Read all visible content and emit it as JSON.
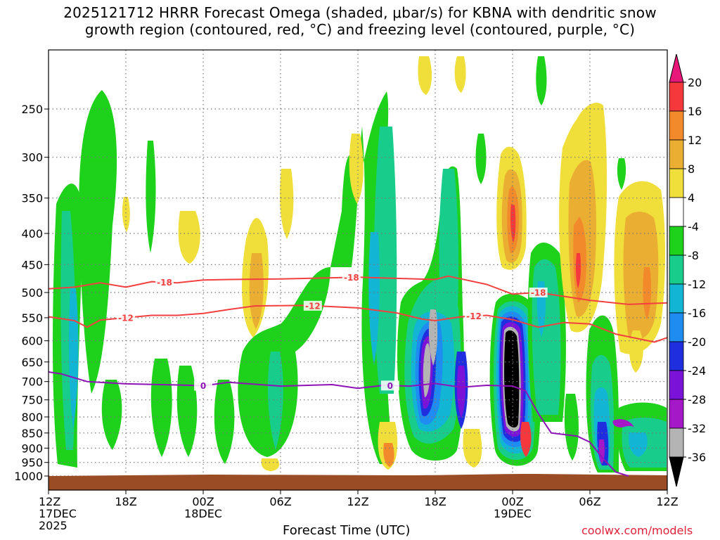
{
  "title": {
    "line1": "2025121712 HRRR Forecast Omega (shaded, μbar/s) for KBNA with dendritic snow",
    "line2": "growth region (contoured, red, °C) and freezing level (contoured, purple, °C)"
  },
  "credit": "coolwx.com/models",
  "chart_data": {
    "type": "heatmap",
    "title": "2025121712 HRRR Forecast Omega (shaded, μbar/s) for KBNA with dendritic snow growth region (contoured, red, °C) and freezing level (contoured, purple, °C)",
    "xlabel": "Forecast Time (UTC)",
    "ylabel": "",
    "x_hours": [
      0,
      48
    ],
    "x_ticks": [
      {
        "hour": 0,
        "labels": [
          "12Z",
          "17DEC",
          "2025"
        ]
      },
      {
        "hour": 6,
        "labels": [
          "18Z"
        ]
      },
      {
        "hour": 12,
        "labels": [
          "00Z",
          "18DEC"
        ]
      },
      {
        "hour": 18,
        "labels": [
          "06Z"
        ]
      },
      {
        "hour": 24,
        "labels": [
          "12Z"
        ]
      },
      {
        "hour": 30,
        "labels": [
          "18Z"
        ]
      },
      {
        "hour": 36,
        "labels": [
          "00Z",
          "19DEC"
        ]
      },
      {
        "hour": 42,
        "labels": [
          "06Z"
        ]
      },
      {
        "hour": 48,
        "labels": [
          "12Z"
        ]
      }
    ],
    "y_ticks": [
      250,
      300,
      350,
      400,
      450,
      500,
      550,
      600,
      650,
      700,
      750,
      800,
      850,
      900,
      950,
      1000
    ],
    "ylim": [
      200,
      1000
    ],
    "y_scale": "log-pressure",
    "colorbar": {
      "labels": [
        "20",
        "16",
        "12",
        "8",
        "4",
        "-4",
        "-8",
        "-12",
        "-16",
        "-20",
        "-24",
        "-28",
        "-32",
        "-36"
      ],
      "bands": [
        {
          "lo": 16,
          "hi": 20,
          "color": "#f5383c"
        },
        {
          "lo": 12,
          "hi": 16,
          "color": "#f28a2c"
        },
        {
          "lo": 8,
          "hi": 12,
          "color": "#e9ae32"
        },
        {
          "lo": 4,
          "hi": 8,
          "color": "#f0df3a"
        },
        {
          "lo": -4,
          "hi": 4,
          "color": "#ffffff"
        },
        {
          "lo": -8,
          "hi": -4,
          "color": "#1ed21b"
        },
        {
          "lo": -12,
          "hi": -8,
          "color": "#18cc8c"
        },
        {
          "lo": -16,
          "hi": -12,
          "color": "#13b5d4"
        },
        {
          "lo": -20,
          "hi": -16,
          "color": "#1e8cf0"
        },
        {
          "lo": -24,
          "hi": -20,
          "color": "#1f2fe0"
        },
        {
          "lo": -28,
          "hi": -24,
          "color": "#7a12d8"
        },
        {
          "lo": -32,
          "hi": -28,
          "color": "#a418c8"
        },
        {
          "lo": -36,
          "hi": -32,
          "color": "#b4b4b4"
        }
      ],
      "top_arrow_color": "#e8187a",
      "bottom_arrow_color": "#000000"
    },
    "series": [
      {
        "name": "-18",
        "color": "#f24040",
        "labels_at_hours": [
          9,
          23.5,
          38
        ],
        "points": [
          [
            0,
            493
          ],
          [
            2,
            490
          ],
          [
            4,
            482
          ],
          [
            6,
            490
          ],
          [
            8,
            480
          ],
          [
            10,
            482
          ],
          [
            12,
            477
          ],
          [
            14,
            476
          ],
          [
            18,
            475
          ],
          [
            24,
            472
          ],
          [
            30,
            476
          ],
          [
            31,
            470
          ],
          [
            34,
            485
          ],
          [
            36,
            503
          ],
          [
            38,
            500
          ],
          [
            42,
            515
          ],
          [
            45,
            523
          ],
          [
            48,
            520
          ]
        ]
      },
      {
        "name": "-12",
        "color": "#f24040",
        "labels_at_hours": [
          6,
          20.5,
          33
        ],
        "points": [
          [
            0,
            548
          ],
          [
            2,
            556
          ],
          [
            3,
            570
          ],
          [
            4,
            555
          ],
          [
            6,
            550
          ],
          [
            8,
            545
          ],
          [
            10,
            545
          ],
          [
            12,
            541
          ],
          [
            14,
            533
          ],
          [
            16,
            526
          ],
          [
            20,
            525
          ],
          [
            24,
            530
          ],
          [
            27,
            540
          ],
          [
            29,
            553
          ],
          [
            30,
            556
          ],
          [
            32,
            548
          ],
          [
            34,
            545
          ],
          [
            36,
            554
          ],
          [
            38,
            570
          ],
          [
            40,
            560
          ],
          [
            42,
            563
          ],
          [
            44,
            585
          ],
          [
            47,
            603
          ],
          [
            48,
            593
          ]
        ]
      },
      {
        "name": "0",
        "color": "#8e12b8",
        "labels_at_hours": [
          12,
          26.5
        ],
        "points": [
          [
            0,
            675
          ],
          [
            1,
            680
          ],
          [
            3,
            700
          ],
          [
            6,
            706
          ],
          [
            10,
            709
          ],
          [
            12,
            711
          ],
          [
            14,
            702
          ],
          [
            18,
            712
          ],
          [
            22,
            708
          ],
          [
            24,
            718
          ],
          [
            26,
            710
          ],
          [
            28,
            712
          ],
          [
            30,
            705
          ],
          [
            32,
            715
          ],
          [
            34,
            710
          ],
          [
            36,
            712
          ],
          [
            37,
            725
          ],
          [
            38,
            790
          ],
          [
            39,
            850
          ],
          [
            41,
            860
          ],
          [
            42,
            880
          ],
          [
            43,
            935
          ],
          [
            44,
            985
          ],
          [
            45,
            1000
          ]
        ]
      }
    ],
    "highlight_freezing_label": "0",
    "axis_labels_legend": "right colorbar"
  }
}
